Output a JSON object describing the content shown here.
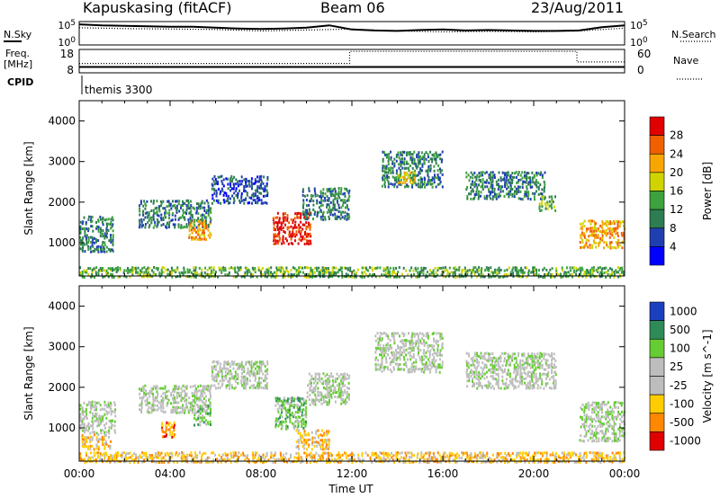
{
  "header": {
    "station": "Kapuskasing (fitACF)",
    "beam": "Beam 06",
    "date": "23/Aug/2011"
  },
  "left_labels": {
    "nsky": "N.Sky",
    "freq": "Freq.",
    "freq_unit": "[MHz]",
    "cpid": "CPID"
  },
  "right_labels": {
    "nsearch": "N.Search",
    "nave": "Nave"
  },
  "cpid_text": "themis 3300",
  "colors": {
    "power_scale": [
      "#0000ff",
      "#1f3fb0",
      "#2e7d52",
      "#3da13d",
      "#cfd400",
      "#f7a600",
      "#f06000",
      "#e00000"
    ],
    "velocity_scale": [
      "#1a3fbf",
      "#2e8b57",
      "#66cc33",
      "#bdbdbd",
      "#bdbdbd",
      "#ffcc00",
      "#ff8800",
      "#e00000"
    ]
  },
  "chart_data": [
    {
      "type": "line",
      "panel": "noise",
      "ylim_labels": [
        "10^5",
        "10^0"
      ],
      "right_ylim_labels": [
        "10^5",
        "10^0"
      ],
      "series": [
        {
          "name": "N.Sky",
          "style": "solid",
          "x": [
            0,
            1,
            2,
            3,
            4,
            5,
            6,
            7,
            8,
            9,
            10,
            11,
            12,
            13,
            14,
            15,
            16,
            17,
            18,
            19,
            20,
            21,
            22,
            23,
            24
          ],
          "log_level": [
            4.4,
            4.2,
            4.1,
            4.0,
            3.9,
            3.9,
            3.7,
            3.5,
            3.4,
            3.5,
            3.7,
            4.2,
            3.3,
            3.1,
            3.0,
            3.2,
            3.3,
            3.1,
            3.2,
            3.1,
            3.0,
            3.0,
            3.1,
            3.8,
            4.2
          ]
        },
        {
          "name": "N.Search",
          "style": "dotted",
          "x": [
            0,
            2,
            4,
            6,
            8,
            10,
            12,
            14,
            16,
            18,
            20,
            22,
            24
          ],
          "log_level": [
            3.7,
            3.5,
            3.4,
            3.3,
            3.0,
            3.2,
            3.4,
            3.0,
            2.8,
            2.9,
            2.8,
            3.0,
            3.6
          ]
        }
      ]
    },
    {
      "type": "line",
      "panel": "frequency",
      "ylim": [
        8,
        18
      ],
      "right_ylim": [
        0,
        60
      ],
      "yticks": [
        "18",
        "8"
      ],
      "right_yticks": [
        "60",
        "0"
      ],
      "series": [
        {
          "name": "Freq.",
          "style": "solid",
          "x": [
            0,
            11.9,
            11.9,
            24
          ],
          "y": [
            10.5,
            10.5,
            10.5,
            10.5
          ]
        },
        {
          "name": "Nave",
          "style": "dotted",
          "x": [
            0,
            11.9,
            11.9,
            21.9,
            21.9,
            24
          ],
          "y": [
            24,
            24,
            55,
            55,
            28,
            28
          ]
        }
      ]
    },
    {
      "type": "heatmap",
      "panel": "power",
      "ylabel": "Slant Range [km]",
      "colorbar_label": "Power [dB]",
      "colorbar_ticks": [
        4,
        8,
        12,
        16,
        20,
        24,
        28
      ],
      "ylim": [
        180,
        4500
      ],
      "yticks": [
        1000,
        2000,
        3000,
        4000
      ],
      "regions": [
        {
          "t0": 0.0,
          "t1": 1.5,
          "r0": 800,
          "r1": 1700,
          "level": 2
        },
        {
          "t0": 2.6,
          "t1": 5.8,
          "r0": 1400,
          "r1": 2100,
          "level": 2
        },
        {
          "t0": 4.8,
          "t1": 5.8,
          "r0": 1100,
          "r1": 1600,
          "level": 5
        },
        {
          "t0": 5.8,
          "t1": 8.3,
          "r0": 2000,
          "r1": 2700,
          "level": 1
        },
        {
          "t0": 8.5,
          "t1": 10.2,
          "r0": 1000,
          "r1": 1800,
          "level": 7
        },
        {
          "t0": 9.8,
          "t1": 11.9,
          "r0": 1600,
          "r1": 2400,
          "level": 2
        },
        {
          "t0": 13.3,
          "t1": 16.0,
          "r0": 2400,
          "r1": 3300,
          "level": 2
        },
        {
          "t0": 14.0,
          "t1": 14.8,
          "r0": 2500,
          "r1": 2800,
          "level": 4
        },
        {
          "t0": 17.0,
          "t1": 20.5,
          "r0": 2100,
          "r1": 2800,
          "level": 2
        },
        {
          "t0": 20.2,
          "t1": 21.0,
          "r0": 1800,
          "r1": 2200,
          "level": 3
        },
        {
          "t0": 22.0,
          "t1": 24.0,
          "r0": 900,
          "r1": 1600,
          "level": 5
        },
        {
          "t0": 0.0,
          "t1": 24.0,
          "r0": 180,
          "r1": 450,
          "level": 3
        }
      ]
    },
    {
      "type": "heatmap",
      "panel": "velocity",
      "xlabel": "Time UT",
      "ylabel": "Slant Range [km]",
      "colorbar_label": "Velocity [m s^-1]",
      "colorbar_ticks": [
        1000,
        500,
        100,
        25,
        -25,
        -100,
        -500,
        -1000
      ],
      "ylim": [
        180,
        4500
      ],
      "yticks": [
        1000,
        2000,
        3000,
        4000
      ],
      "xticks": [
        "00:00",
        "04:00",
        "08:00",
        "12:00",
        "16:00",
        "20:00",
        "00:00"
      ],
      "regions": [
        {
          "t0": 0.0,
          "t1": 1.6,
          "r0": 900,
          "r1": 1700,
          "level": 3
        },
        {
          "t0": 0.0,
          "t1": 1.4,
          "r0": 500,
          "r1": 900,
          "level": 5
        },
        {
          "t0": 2.6,
          "t1": 5.8,
          "r0": 1400,
          "r1": 2100,
          "level": 3
        },
        {
          "t0": 3.6,
          "t1": 4.2,
          "r0": 800,
          "r1": 1200,
          "level": 6
        },
        {
          "t0": 5.0,
          "t1": 5.8,
          "r0": 1100,
          "r1": 1600,
          "level": 2
        },
        {
          "t0": 5.8,
          "t1": 8.3,
          "r0": 2000,
          "r1": 2700,
          "level": 3
        },
        {
          "t0": 8.6,
          "t1": 10.0,
          "r0": 1000,
          "r1": 1800,
          "level": 2
        },
        {
          "t0": 9.5,
          "t1": 11.0,
          "r0": 500,
          "r1": 1000,
          "level": 5
        },
        {
          "t0": 10.0,
          "t1": 11.9,
          "r0": 1600,
          "r1": 2400,
          "level": 3
        },
        {
          "t0": 13.0,
          "t1": 16.0,
          "r0": 2400,
          "r1": 3400,
          "level": 3
        },
        {
          "t0": 17.0,
          "t1": 21.0,
          "r0": 2000,
          "r1": 2900,
          "level": 3
        },
        {
          "t0": 22.0,
          "t1": 24.0,
          "r0": 700,
          "r1": 1700,
          "level": 3
        },
        {
          "t0": 0.0,
          "t1": 24.0,
          "r0": 180,
          "r1": 450,
          "level": 5
        }
      ]
    }
  ]
}
